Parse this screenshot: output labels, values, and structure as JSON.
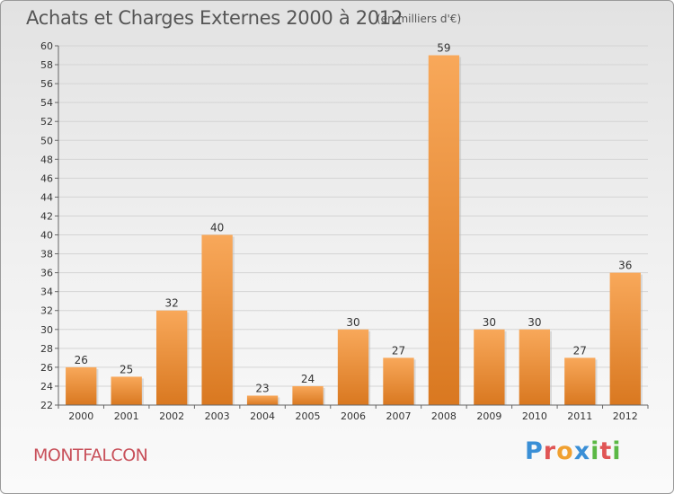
{
  "chart_data": {
    "type": "bar",
    "title": "Achats et Charges Externes 2000 à 2012",
    "subtitle": "(en milliers d'€)",
    "xlabel": "",
    "ylabel": "",
    "categories": [
      "2000",
      "2001",
      "2002",
      "2003",
      "2004",
      "2005",
      "2006",
      "2007",
      "2008",
      "2009",
      "2010",
      "2011",
      "2012"
    ],
    "values": [
      26,
      25,
      32,
      40,
      23,
      24,
      30,
      27,
      59,
      30,
      30,
      27,
      36
    ],
    "ylim": [
      22,
      60
    ],
    "yticks": [
      22,
      24,
      26,
      28,
      30,
      32,
      34,
      36,
      38,
      40,
      42,
      44,
      46,
      48,
      50,
      52,
      54,
      56,
      58,
      60
    ],
    "grid": true,
    "legend": "none",
    "bar_color_top": "#f8a85a",
    "bar_color_bottom": "#d97820"
  },
  "footer": {
    "town": "MONTFALCON",
    "logo_letters": [
      "P",
      "r",
      "o",
      "x",
      "i",
      "t",
      "i"
    ]
  }
}
